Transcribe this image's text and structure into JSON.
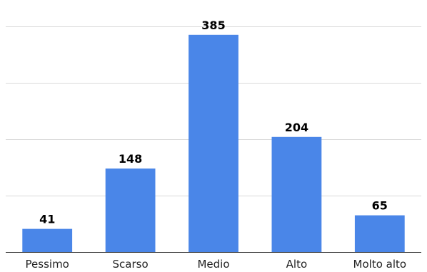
{
  "chart_data": {
    "type": "bar",
    "title": "",
    "xlabel": "",
    "ylabel": "",
    "categories": [
      "Pessimo",
      "Scarso",
      "Medio",
      "Alto",
      "Molto alto"
    ],
    "values": [
      41,
      148,
      385,
      204,
      65
    ],
    "data_labels": [
      "41",
      "148",
      "385",
      "204",
      "65"
    ],
    "ylim": [
      0,
      400
    ],
    "y_gridlines": [
      100,
      200,
      300,
      400
    ],
    "grid": true,
    "legend": "none",
    "bar_color": "#4a86e8"
  }
}
